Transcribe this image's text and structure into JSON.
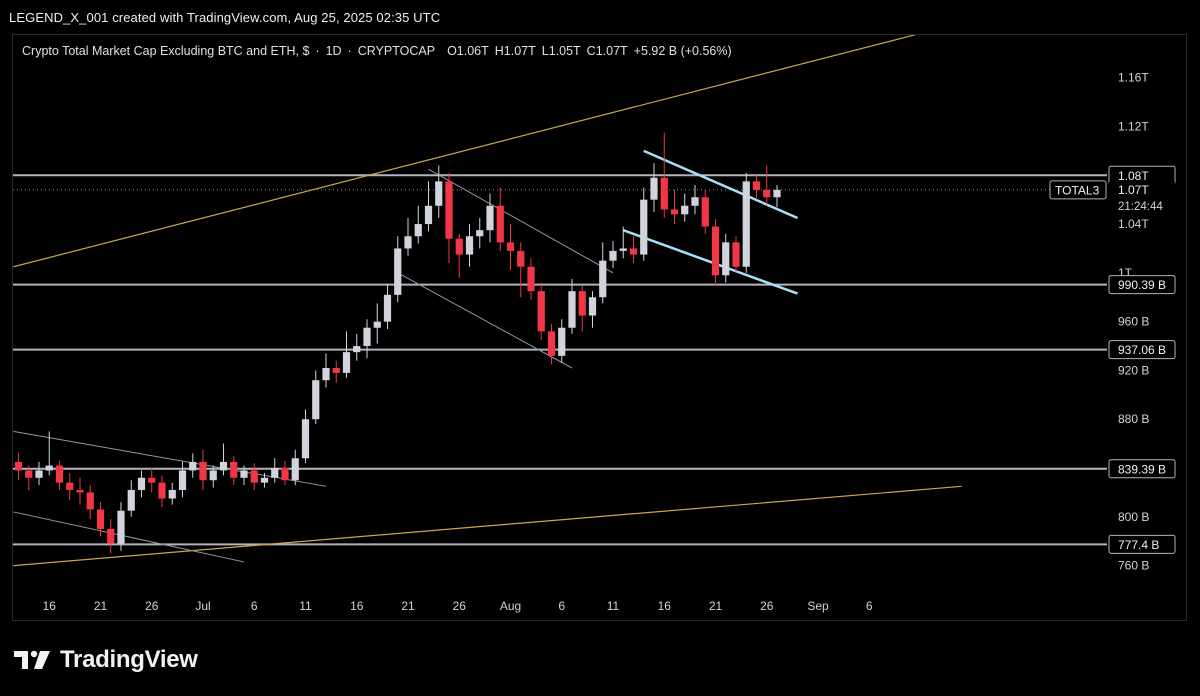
{
  "header": {
    "text": "LEGEND_X_001 created with TradingView.com, Aug 25, 2025 02:35 UTC"
  },
  "legend": {
    "title": "Crypto Total Market Cap Excluding BTC and ETH, $",
    "sep1": "·",
    "interval": "1D",
    "sep2": "·",
    "source": "CRYPTOCAP",
    "open": "O1.06T",
    "high": "H1.07T",
    "low": "L1.05T",
    "close": "C1.07T",
    "change": "+5.92 B (+0.56%)"
  },
  "footer": {
    "brand": "TradingView",
    "logo_icon": "tradingview-logo-icon"
  },
  "chart_data": {
    "type": "candlestick",
    "symbol": "TOTAL3",
    "last_price_label": "1.07T",
    "countdown": "21:24:44",
    "y_ticks": [
      "1.16T",
      "1.12T",
      "1.04T",
      "1T",
      "960 B",
      "920 B",
      "880 B",
      "800 B",
      "760 B"
    ],
    "y_tick_values": [
      1160,
      1120,
      1040,
      1000,
      960,
      920,
      880,
      800,
      760
    ],
    "x_ticks": [
      "16",
      "21",
      "26",
      "Jul",
      "6",
      "11",
      "16",
      "21",
      "26",
      "Aug",
      "6",
      "11",
      "16",
      "21",
      "26",
      "Sep",
      "6"
    ],
    "level_labels": [
      {
        "label": "1.08T",
        "value": 1080
      },
      {
        "label": "990.39 B",
        "value": 990.39
      },
      {
        "label": "937.06 B",
        "value": 937.06
      },
      {
        "label": "839.39 B",
        "value": 839.39
      },
      {
        "label": "777.4 B",
        "value": 777.4
      }
    ],
    "ylim": [
      740,
      1195
    ],
    "colors": {
      "up": "#d1d4dc",
      "down": "#f23645",
      "level": "#b2b5be",
      "trend": "#c7a94a",
      "channel": "#9598a1",
      "flag": "#a6e1fa"
    },
    "candles": [
      [
        845,
        838,
        852,
        830
      ],
      [
        838,
        832,
        842,
        822
      ],
      [
        832,
        838,
        845,
        826
      ],
      [
        838,
        842,
        870,
        834
      ],
      [
        842,
        828,
        846,
        822
      ],
      [
        828,
        822,
        836,
        814
      ],
      [
        822,
        820,
        832,
        810
      ],
      [
        820,
        806,
        826,
        798
      ],
      [
        806,
        790,
        812,
        784
      ],
      [
        790,
        778,
        798,
        770
      ],
      [
        778,
        805,
        812,
        772
      ],
      [
        805,
        822,
        830,
        800
      ],
      [
        822,
        832,
        838,
        816
      ],
      [
        832,
        828,
        840,
        820
      ],
      [
        828,
        815,
        834,
        808
      ],
      [
        815,
        822,
        828,
        810
      ],
      [
        822,
        838,
        845,
        816
      ],
      [
        838,
        845,
        852,
        832
      ],
      [
        845,
        830,
        855,
        822
      ],
      [
        830,
        838,
        842,
        824
      ],
      [
        838,
        845,
        860,
        834
      ],
      [
        845,
        832,
        850,
        826
      ],
      [
        832,
        838,
        842,
        826
      ],
      [
        838,
        828,
        844,
        822
      ],
      [
        828,
        832,
        836,
        824
      ],
      [
        832,
        840,
        848,
        828
      ],
      [
        840,
        830,
        846,
        826
      ],
      [
        830,
        848,
        855,
        826
      ],
      [
        848,
        880,
        888,
        844
      ],
      [
        880,
        912,
        920,
        876
      ],
      [
        912,
        922,
        934,
        906
      ],
      [
        922,
        918,
        928,
        910
      ],
      [
        918,
        935,
        952,
        914
      ],
      [
        935,
        940,
        950,
        928
      ],
      [
        940,
        955,
        962,
        930
      ],
      [
        955,
        960,
        975,
        942
      ],
      [
        960,
        982,
        990,
        954
      ],
      [
        982,
        1020,
        1030,
        976
      ],
      [
        1020,
        1030,
        1045,
        1014
      ],
      [
        1030,
        1040,
        1055,
        1024
      ],
      [
        1040,
        1055,
        1075,
        1034
      ],
      [
        1055,
        1075,
        1088,
        1045
      ],
      [
        1075,
        1028,
        1082,
        1008
      ],
      [
        1028,
        1015,
        1032,
        996
      ],
      [
        1015,
        1030,
        1040,
        1005
      ],
      [
        1030,
        1035,
        1045,
        1020
      ],
      [
        1035,
        1055,
        1065,
        1025
      ],
      [
        1055,
        1025,
        1070,
        1018
      ],
      [
        1025,
        1018,
        1040,
        1002
      ],
      [
        1018,
        1005,
        1025,
        980
      ],
      [
        1005,
        985,
        1012,
        978
      ],
      [
        985,
        952,
        992,
        945
      ],
      [
        952,
        932,
        958,
        925
      ],
      [
        932,
        955,
        962,
        926
      ],
      [
        955,
        985,
        995,
        950
      ],
      [
        985,
        965,
        990,
        952
      ],
      [
        965,
        980,
        985,
        955
      ],
      [
        980,
        1010,
        1025,
        975
      ],
      [
        1010,
        1018,
        1026,
        1004
      ],
      [
        1018,
        1020,
        1038,
        1012
      ],
      [
        1020,
        1015,
        1030,
        1008
      ],
      [
        1015,
        1060,
        1070,
        1010
      ],
      [
        1060,
        1078,
        1090,
        1050
      ],
      [
        1078,
        1052,
        1115,
        1045
      ],
      [
        1052,
        1048,
        1068,
        1040
      ],
      [
        1048,
        1055,
        1065,
        1042
      ],
      [
        1055,
        1062,
        1072,
        1048
      ],
      [
        1062,
        1038,
        1068,
        1032
      ],
      [
        1038,
        998,
        1044,
        990
      ],
      [
        998,
        1025,
        1032,
        992
      ],
      [
        1025,
        1005,
        1030,
        1000
      ],
      [
        1005,
        1075,
        1082,
        1000
      ],
      [
        1075,
        1068,
        1080,
        1060
      ],
      [
        1068,
        1062,
        1088,
        1056
      ],
      [
        1062,
        1068,
        1072,
        1054
      ]
    ],
    "overlay_lines": {
      "trend_upper": [
        [
          -0.5,
          1005
        ],
        [
          92,
          1205
        ]
      ],
      "trend_lower": [
        [
          -0.5,
          760
        ],
        [
          92,
          825
        ]
      ],
      "channel_upper": [
        [
          -0.5,
          870
        ],
        [
          30,
          825
        ]
      ],
      "channel_lower": [
        [
          -0.5,
          804
        ],
        [
          22,
          763
        ]
      ],
      "desc_upper": [
        [
          40,
          1085
        ],
        [
          58,
          1000
        ]
      ],
      "desc_lower": [
        [
          37,
          1000
        ],
        [
          54,
          922
        ]
      ],
      "flag_upper": [
        [
          61,
          1100
        ],
        [
          76,
          1045
        ]
      ],
      "flag_lower": [
        [
          59,
          1035
        ],
        [
          76,
          983
        ]
      ]
    }
  }
}
